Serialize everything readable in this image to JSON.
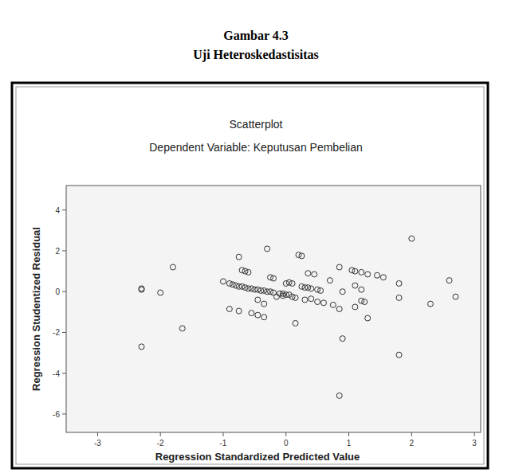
{
  "caption": {
    "label": "Gambar 4.3",
    "title": "Uji Heteroskedastisitas"
  },
  "chart_data": {
    "type": "scatter",
    "title": "Scatterplot",
    "subtitle": "Dependent Variable: Keputusan Pembelian",
    "x_label": "Regression Standardized Predicted Value",
    "y_label": "Regression Studentized Residual",
    "marker": "circle",
    "color": "#333333",
    "grid": false,
    "xlim": [
      -3.5,
      3.1
    ],
    "ylim": [
      -6.9,
      5.2
    ],
    "xticks": [
      -3,
      -2,
      -1,
      0,
      1,
      2,
      3
    ],
    "yticks": [
      -6,
      -4,
      -2,
      0,
      2,
      4
    ],
    "x": [
      -2.3,
      -2.3,
      -2.3,
      -2.0,
      -1.8,
      -1.65,
      -1.0,
      -0.9,
      -0.85,
      -0.8,
      -0.75,
      -0.7,
      -0.65,
      -0.6,
      -0.55,
      -0.5,
      -0.45,
      -0.4,
      -0.35,
      -0.3,
      -0.25,
      -0.2,
      -0.1,
      -0.05,
      0.0,
      -0.75,
      -0.7,
      -0.65,
      -0.6,
      -0.9,
      -0.75,
      -0.55,
      -0.45,
      -0.35,
      -0.3,
      -0.2,
      -0.25,
      -0.35,
      -0.45,
      -0.15,
      0.05,
      0.1,
      0.1,
      0.15,
      0.2,
      0.25,
      0.15,
      0.3,
      0.35,
      0.4,
      0.35,
      0.45,
      0.5,
      0.55,
      0.6,
      0.5,
      0.7,
      0.75,
      0.85,
      0.9,
      0.85,
      0.9,
      0.85,
      1.05,
      1.1,
      1.2,
      1.3,
      1.45,
      1.55,
      1.1,
      1.2,
      1.25,
      1.2,
      1.1,
      1.3,
      1.8,
      1.8,
      1.8,
      2.0,
      2.3,
      2.6,
      2.7,
      0.4,
      0.25,
      0.3,
      0.0,
      -0.05,
      0.05
    ],
    "values": [
      0.1,
      0.15,
      -2.7,
      -0.05,
      1.2,
      -1.8,
      0.5,
      0.4,
      0.35,
      0.3,
      0.25,
      0.25,
      0.2,
      0.15,
      0.15,
      0.1,
      0.1,
      0.05,
      0.05,
      0.0,
      0.0,
      -0.05,
      -0.1,
      -0.1,
      -0.15,
      1.7,
      1.05,
      1.0,
      0.95,
      -0.85,
      -0.95,
      -1.05,
      -1.15,
      -1.25,
      2.1,
      0.65,
      0.7,
      -0.6,
      -0.4,
      -0.25,
      0.45,
      0.4,
      -0.25,
      -0.3,
      1.8,
      1.75,
      -1.55,
      -0.4,
      0.2,
      0.15,
      0.9,
      0.85,
      0.1,
      0.05,
      -0.55,
      -0.5,
      0.55,
      -0.65,
      1.2,
      0.0,
      -0.85,
      -2.3,
      -5.1,
      1.05,
      1.0,
      0.95,
      0.85,
      0.8,
      0.7,
      0.3,
      0.1,
      -0.5,
      -0.45,
      -0.75,
      -1.3,
      0.4,
      -0.3,
      -3.1,
      2.6,
      -0.6,
      0.55,
      -0.25,
      -0.35,
      0.25,
      0.2,
      0.4,
      -0.2,
      -0.15
    ]
  }
}
